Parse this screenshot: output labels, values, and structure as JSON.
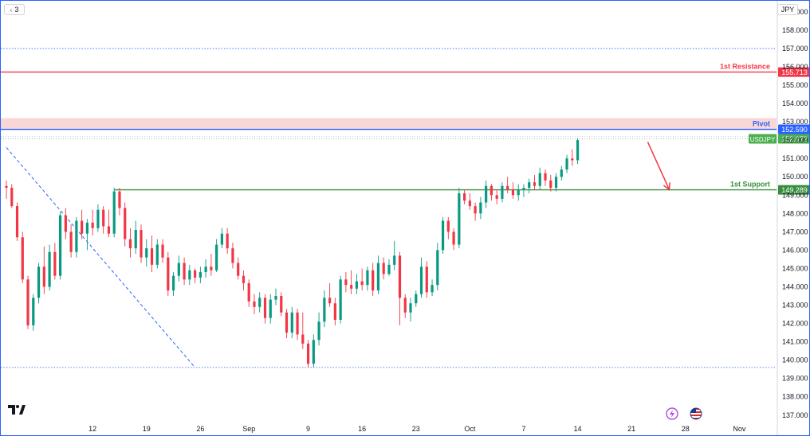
{
  "toolbar": {
    "collapse_label": "3",
    "currency": "JPY"
  },
  "chart_data": {
    "type": "candlestick",
    "symbol": "USDJPY",
    "currency": "JPY",
    "ylim": [
      136.6,
      159.6
    ],
    "y_ticks": [
      137,
      138,
      139,
      140,
      141,
      142,
      143,
      144,
      145,
      146,
      147,
      148,
      149,
      150,
      151,
      152,
      153,
      154,
      155,
      156,
      157,
      158,
      159
    ],
    "y_tick_labels": [
      "137.000",
      "138.000",
      "139.000",
      "140.000",
      "141.000",
      "142.000",
      "143.000",
      "144.000",
      "145.000",
      "146.000",
      "147.000",
      "148.000",
      "149.000",
      "150.000",
      "151.000",
      "152.000",
      "153.000",
      "154.000",
      "155.000",
      "156.000",
      "157.000",
      "158.000",
      "159.000"
    ],
    "x_ticks": [
      {
        "label": "12",
        "index": 16
      },
      {
        "label": "19",
        "index": 26
      },
      {
        "label": "26",
        "index": 36
      },
      {
        "label": "Sep",
        "index": 45
      },
      {
        "label": "9",
        "index": 56
      },
      {
        "label": "16",
        "index": 66
      },
      {
        "label": "23",
        "index": 76
      },
      {
        "label": "Oct",
        "index": 86
      },
      {
        "label": "7",
        "index": 96
      },
      {
        "label": "14",
        "index": 106
      },
      {
        "label": "21",
        "index": 116
      },
      {
        "label": "28",
        "index": 126
      },
      {
        "label": "Nov",
        "index": 136
      }
    ],
    "levels": [
      {
        "name": "1st Resistance",
        "value": 155.713,
        "color": "#f23645",
        "label": "155.713"
      },
      {
        "name": "Pivot",
        "value": 152.59,
        "color": "#2962ff",
        "label": "152.590"
      },
      {
        "name": "1st Support",
        "value": 149.289,
        "color": "#388e3c",
        "label": "149.289"
      }
    ],
    "current_price": {
      "symbol": "USDJPY",
      "value": 152.072,
      "label": "152.072",
      "color": "#4caf50"
    },
    "pivot_zone": [
      152.59,
      153.2
    ],
    "dotted_lines": [
      157.0,
      139.6
    ],
    "trendline": {
      "from": {
        "index": 0,
        "price": 151.6
      },
      "to": {
        "index": 35,
        "price": 139.6
      }
    },
    "arrow": {
      "from": {
        "index": 119,
        "price": 151.9
      },
      "to": {
        "index": 123,
        "price": 149.3
      },
      "color": "#f23645"
    },
    "support_line_start_index": 20,
    "series": [
      {
        "o": 149.5,
        "h": 149.8,
        "l": 148.8,
        "c": 149.4
      },
      {
        "o": 149.4,
        "h": 149.6,
        "l": 148.3,
        "c": 148.4
      },
      {
        "o": 148.4,
        "h": 148.6,
        "l": 146.5,
        "c": 146.7
      },
      {
        "o": 146.7,
        "h": 147.0,
        "l": 144.2,
        "c": 144.4
      },
      {
        "o": 144.4,
        "h": 144.6,
        "l": 141.7,
        "c": 141.9
      },
      {
        "o": 141.9,
        "h": 143.6,
        "l": 141.6,
        "c": 143.4
      },
      {
        "o": 143.4,
        "h": 145.3,
        "l": 143.1,
        "c": 145.1
      },
      {
        "o": 145.1,
        "h": 146.2,
        "l": 143.6,
        "c": 144.0
      },
      {
        "o": 144.0,
        "h": 146.3,
        "l": 143.8,
        "c": 145.9
      },
      {
        "o": 145.9,
        "h": 146.4,
        "l": 144.4,
        "c": 144.6
      },
      {
        "o": 144.6,
        "h": 148.1,
        "l": 144.4,
        "c": 147.9
      },
      {
        "o": 147.9,
        "h": 148.3,
        "l": 146.6,
        "c": 147.0
      },
      {
        "o": 147.0,
        "h": 147.4,
        "l": 145.6,
        "c": 145.9
      },
      {
        "o": 145.9,
        "h": 147.8,
        "l": 145.6,
        "c": 147.6
      },
      {
        "o": 147.6,
        "h": 148.2,
        "l": 146.6,
        "c": 146.9
      },
      {
        "o": 146.9,
        "h": 147.7,
        "l": 146.0,
        "c": 147.5
      },
      {
        "o": 147.5,
        "h": 148.2,
        "l": 146.8,
        "c": 147.2
      },
      {
        "o": 147.2,
        "h": 148.5,
        "l": 147.0,
        "c": 148.2
      },
      {
        "o": 148.2,
        "h": 148.4,
        "l": 146.9,
        "c": 147.3
      },
      {
        "o": 147.3,
        "h": 148.2,
        "l": 146.7,
        "c": 146.9
      },
      {
        "o": 146.9,
        "h": 149.4,
        "l": 146.7,
        "c": 149.2
      },
      {
        "o": 149.2,
        "h": 149.4,
        "l": 147.9,
        "c": 148.3
      },
      {
        "o": 148.3,
        "h": 148.6,
        "l": 146.2,
        "c": 146.6
      },
      {
        "o": 146.6,
        "h": 147.2,
        "l": 145.6,
        "c": 146.1
      },
      {
        "o": 146.1,
        "h": 147.6,
        "l": 145.8,
        "c": 147.1
      },
      {
        "o": 147.1,
        "h": 147.4,
        "l": 145.3,
        "c": 145.6
      },
      {
        "o": 145.6,
        "h": 146.6,
        "l": 145.1,
        "c": 146.1
      },
      {
        "o": 146.1,
        "h": 146.8,
        "l": 144.8,
        "c": 145.2
      },
      {
        "o": 145.2,
        "h": 146.6,
        "l": 145.0,
        "c": 146.3
      },
      {
        "o": 146.3,
        "h": 146.6,
        "l": 145.3,
        "c": 145.6
      },
      {
        "o": 145.6,
        "h": 145.9,
        "l": 143.5,
        "c": 143.8
      },
      {
        "o": 143.8,
        "h": 144.8,
        "l": 143.5,
        "c": 144.6
      },
      {
        "o": 144.6,
        "h": 145.7,
        "l": 144.3,
        "c": 145.3
      },
      {
        "o": 145.3,
        "h": 145.6,
        "l": 144.1,
        "c": 144.4
      },
      {
        "o": 144.4,
        "h": 145.2,
        "l": 144.1,
        "c": 144.9
      },
      {
        "o": 144.9,
        "h": 145.0,
        "l": 144.2,
        "c": 144.5
      },
      {
        "o": 144.5,
        "h": 145.1,
        "l": 144.2,
        "c": 144.8
      },
      {
        "o": 144.8,
        "h": 145.5,
        "l": 144.5,
        "c": 145.1
      },
      {
        "o": 145.1,
        "h": 145.8,
        "l": 144.6,
        "c": 144.9
      },
      {
        "o": 144.9,
        "h": 146.6,
        "l": 144.8,
        "c": 146.3
      },
      {
        "o": 146.3,
        "h": 147.2,
        "l": 146.1,
        "c": 146.9
      },
      {
        "o": 146.9,
        "h": 147.2,
        "l": 145.8,
        "c": 146.1
      },
      {
        "o": 146.1,
        "h": 146.4,
        "l": 145.0,
        "c": 145.3
      },
      {
        "o": 145.3,
        "h": 145.6,
        "l": 144.4,
        "c": 144.6
      },
      {
        "o": 144.6,
        "h": 144.9,
        "l": 143.8,
        "c": 144.2
      },
      {
        "o": 144.2,
        "h": 144.4,
        "l": 142.9,
        "c": 143.2
      },
      {
        "o": 143.2,
        "h": 143.6,
        "l": 142.5,
        "c": 142.9
      },
      {
        "o": 142.9,
        "h": 143.7,
        "l": 142.6,
        "c": 143.4
      },
      {
        "o": 143.4,
        "h": 143.6,
        "l": 142.0,
        "c": 142.3
      },
      {
        "o": 142.3,
        "h": 143.6,
        "l": 142.0,
        "c": 143.3
      },
      {
        "o": 143.3,
        "h": 143.9,
        "l": 143.0,
        "c": 143.5
      },
      {
        "o": 143.5,
        "h": 143.7,
        "l": 142.4,
        "c": 142.6
      },
      {
        "o": 142.6,
        "h": 142.8,
        "l": 141.2,
        "c": 141.5
      },
      {
        "o": 141.5,
        "h": 142.9,
        "l": 141.2,
        "c": 142.6
      },
      {
        "o": 142.6,
        "h": 142.8,
        "l": 141.1,
        "c": 141.4
      },
      {
        "o": 141.4,
        "h": 142.6,
        "l": 140.6,
        "c": 140.9
      },
      {
        "o": 140.9,
        "h": 141.1,
        "l": 139.6,
        "c": 139.8
      },
      {
        "o": 139.8,
        "h": 141.4,
        "l": 139.6,
        "c": 141.1
      },
      {
        "o": 141.1,
        "h": 142.6,
        "l": 140.8,
        "c": 142.1
      },
      {
        "o": 142.1,
        "h": 143.8,
        "l": 141.8,
        "c": 143.4
      },
      {
        "o": 143.4,
        "h": 144.2,
        "l": 142.9,
        "c": 143.1
      },
      {
        "o": 143.1,
        "h": 143.4,
        "l": 141.9,
        "c": 142.2
      },
      {
        "o": 142.2,
        "h": 144.6,
        "l": 142.0,
        "c": 144.4
      },
      {
        "o": 144.4,
        "h": 144.8,
        "l": 143.7,
        "c": 144.1
      },
      {
        "o": 144.1,
        "h": 144.9,
        "l": 143.6,
        "c": 143.9
      },
      {
        "o": 143.9,
        "h": 144.7,
        "l": 143.6,
        "c": 144.3
      },
      {
        "o": 144.3,
        "h": 145.0,
        "l": 143.8,
        "c": 144.1
      },
      {
        "o": 144.1,
        "h": 145.1,
        "l": 143.8,
        "c": 144.9
      },
      {
        "o": 144.9,
        "h": 145.3,
        "l": 143.5,
        "c": 143.8
      },
      {
        "o": 143.8,
        "h": 145.7,
        "l": 143.6,
        "c": 145.3
      },
      {
        "o": 145.3,
        "h": 145.6,
        "l": 144.4,
        "c": 144.7
      },
      {
        "o": 144.7,
        "h": 145.5,
        "l": 144.6,
        "c": 145.2
      },
      {
        "o": 145.2,
        "h": 146.5,
        "l": 144.9,
        "c": 145.7
      },
      {
        "o": 145.7,
        "h": 145.9,
        "l": 141.9,
        "c": 143.4
      },
      {
        "o": 143.4,
        "h": 143.6,
        "l": 142.3,
        "c": 142.6
      },
      {
        "o": 142.6,
        "h": 143.4,
        "l": 142.1,
        "c": 143.1
      },
      {
        "o": 143.1,
        "h": 143.8,
        "l": 142.9,
        "c": 143.6
      },
      {
        "o": 143.6,
        "h": 145.6,
        "l": 143.4,
        "c": 145.1
      },
      {
        "o": 145.1,
        "h": 145.4,
        "l": 143.4,
        "c": 143.7
      },
      {
        "o": 143.7,
        "h": 144.4,
        "l": 143.5,
        "c": 144.1
      },
      {
        "o": 144.1,
        "h": 146.4,
        "l": 143.8,
        "c": 146.0
      },
      {
        "o": 146.0,
        "h": 147.8,
        "l": 145.8,
        "c": 147.6
      },
      {
        "o": 147.6,
        "h": 147.8,
        "l": 146.6,
        "c": 147.0
      },
      {
        "o": 147.0,
        "h": 147.2,
        "l": 146.0,
        "c": 146.3
      },
      {
        "o": 146.3,
        "h": 149.4,
        "l": 146.1,
        "c": 149.1
      },
      {
        "o": 149.1,
        "h": 149.3,
        "l": 148.5,
        "c": 148.7
      },
      {
        "o": 148.7,
        "h": 149.1,
        "l": 148.2,
        "c": 148.4
      },
      {
        "o": 148.4,
        "h": 148.6,
        "l": 147.6,
        "c": 148.0
      },
      {
        "o": 148.0,
        "h": 148.9,
        "l": 147.7,
        "c": 148.6
      },
      {
        "o": 148.6,
        "h": 149.8,
        "l": 148.3,
        "c": 149.5
      },
      {
        "o": 149.5,
        "h": 149.6,
        "l": 148.7,
        "c": 149.0
      },
      {
        "o": 149.0,
        "h": 149.3,
        "l": 148.5,
        "c": 148.8
      },
      {
        "o": 148.8,
        "h": 149.7,
        "l": 148.6,
        "c": 149.5
      },
      {
        "o": 149.5,
        "h": 150.0,
        "l": 149.1,
        "c": 149.3
      },
      {
        "o": 149.3,
        "h": 149.7,
        "l": 148.8,
        "c": 149.0
      },
      {
        "o": 149.0,
        "h": 149.6,
        "l": 148.7,
        "c": 149.3
      },
      {
        "o": 149.3,
        "h": 149.6,
        "l": 148.9,
        "c": 149.4
      },
      {
        "o": 149.4,
        "h": 149.9,
        "l": 149.1,
        "c": 149.7
      },
      {
        "o": 149.7,
        "h": 150.1,
        "l": 149.3,
        "c": 149.5
      },
      {
        "o": 149.5,
        "h": 150.5,
        "l": 149.3,
        "c": 150.2
      },
      {
        "o": 150.2,
        "h": 150.4,
        "l": 149.5,
        "c": 149.8
      },
      {
        "o": 149.8,
        "h": 150.1,
        "l": 149.2,
        "c": 149.4
      },
      {
        "o": 149.4,
        "h": 150.2,
        "l": 149.2,
        "c": 150.0
      },
      {
        "o": 150.0,
        "h": 150.6,
        "l": 149.8,
        "c": 150.4
      },
      {
        "o": 150.4,
        "h": 151.2,
        "l": 150.2,
        "c": 151.0
      },
      {
        "o": 151.0,
        "h": 151.5,
        "l": 150.6,
        "c": 150.9
      },
      {
        "o": 150.9,
        "h": 152.1,
        "l": 150.7,
        "c": 152.0
      }
    ]
  }
}
